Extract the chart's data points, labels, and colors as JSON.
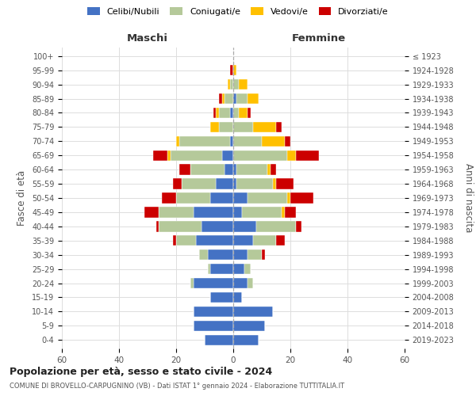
{
  "age_groups": [
    "0-4",
    "5-9",
    "10-14",
    "15-19",
    "20-24",
    "25-29",
    "30-34",
    "35-39",
    "40-44",
    "45-49",
    "50-54",
    "55-59",
    "60-64",
    "65-69",
    "70-74",
    "75-79",
    "80-84",
    "85-89",
    "90-94",
    "95-99",
    "100+"
  ],
  "birth_years": [
    "2019-2023",
    "2014-2018",
    "2009-2013",
    "2004-2008",
    "1999-2003",
    "1994-1998",
    "1989-1993",
    "1984-1988",
    "1979-1983",
    "1974-1978",
    "1969-1973",
    "1964-1968",
    "1959-1963",
    "1954-1958",
    "1949-1953",
    "1944-1948",
    "1939-1943",
    "1934-1938",
    "1929-1933",
    "1924-1928",
    "≤ 1923"
  ],
  "colors": {
    "celibi": "#4472c4",
    "coniugati": "#b5c99a",
    "vedovi": "#ffc000",
    "divorziati": "#cc0000"
  },
  "maschi": {
    "celibi": [
      10,
      14,
      14,
      8,
      14,
      8,
      9,
      13,
      11,
      14,
      8,
      6,
      3,
      4,
      1,
      0,
      1,
      0,
      0,
      0,
      0
    ],
    "coniugati": [
      0,
      0,
      0,
      0,
      1,
      1,
      3,
      7,
      15,
      12,
      12,
      12,
      12,
      18,
      18,
      5,
      4,
      3,
      1,
      0,
      0
    ],
    "vedovi": [
      0,
      0,
      0,
      0,
      0,
      0,
      0,
      0,
      0,
      0,
      0,
      0,
      0,
      1,
      1,
      3,
      1,
      1,
      1,
      0,
      0
    ],
    "divorziati": [
      0,
      0,
      0,
      0,
      0,
      0,
      0,
      1,
      1,
      5,
      5,
      3,
      4,
      5,
      0,
      0,
      1,
      1,
      0,
      1,
      0
    ]
  },
  "femmine": {
    "celibi": [
      9,
      11,
      14,
      3,
      5,
      4,
      5,
      7,
      8,
      3,
      5,
      1,
      1,
      0,
      0,
      0,
      0,
      1,
      0,
      0,
      0
    ],
    "coniugati": [
      0,
      0,
      0,
      0,
      2,
      2,
      5,
      8,
      14,
      14,
      14,
      13,
      11,
      19,
      10,
      7,
      2,
      4,
      2,
      0,
      0
    ],
    "vedovi": [
      0,
      0,
      0,
      0,
      0,
      0,
      0,
      0,
      0,
      1,
      1,
      1,
      1,
      3,
      8,
      8,
      3,
      4,
      3,
      1,
      0
    ],
    "divorziati": [
      0,
      0,
      0,
      0,
      0,
      0,
      1,
      3,
      2,
      4,
      8,
      6,
      2,
      8,
      2,
      2,
      1,
      0,
      0,
      0,
      0
    ]
  },
  "xlim": 60,
  "title": "Popolazione per età, sesso e stato civile - 2024",
  "subtitle": "COMUNE DI BROVELLO-CARPUGNINO (VB) - Dati ISTAT 1° gennaio 2024 - Elaborazione TUTTITALIA.IT",
  "ylabel_left": "Fasce di età",
  "ylabel_right": "Anni di nascita",
  "xlabel_left": "Maschi",
  "xlabel_right": "Femmine",
  "legend_labels": [
    "Celibi/Nubili",
    "Coniugati/e",
    "Vedovi/e",
    "Divorziati/e"
  ],
  "bg_color": "#ffffff",
  "grid_color": "#dddddd",
  "bar_height": 0.75
}
